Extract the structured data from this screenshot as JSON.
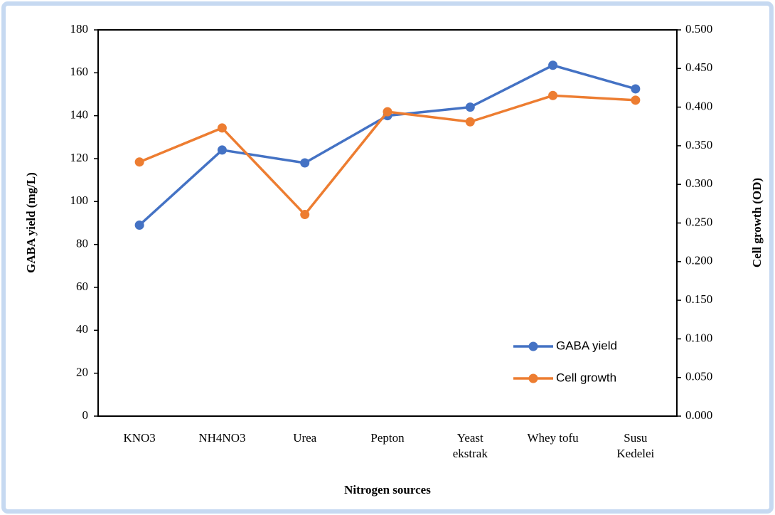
{
  "chart_data": {
    "type": "line",
    "x_label": "Nitrogen sources",
    "y_label": "GABA yield  (mg/L)",
    "y2_label": "Cell growth (OD)",
    "categories": [
      "KNO3",
      "NH4NO3",
      "Urea",
      "Pepton",
      "Yeast ekstrak",
      "Whey tofu",
      "Susu Kedelei"
    ],
    "series": [
      {
        "name": "GABA yield",
        "color": "#4472c4",
        "values": [
          89,
          124,
          118,
          140,
          144,
          163.5,
          152.5
        ]
      },
      {
        "name": "Cell growth",
        "color": "#ed7d31",
        "axis": "y2",
        "values": [
          0.329,
          0.373,
          0.261,
          0.394,
          0.381,
          0.415,
          0.409
        ]
      }
    ],
    "ylim": [
      0,
      180
    ],
    "yticks": [
      0,
      20,
      40,
      60,
      80,
      100,
      120,
      140,
      160,
      180
    ],
    "y2lim": [
      0,
      0.5
    ],
    "y2ticks": [
      {
        "value": 0,
        "label": "0.000"
      },
      {
        "value": 0.05,
        "label": "0.050"
      },
      {
        "value": 0.1,
        "label": "0.100"
      },
      {
        "value": 0.15,
        "label": "0.150"
      },
      {
        "value": 0.2,
        "label": "0.200"
      },
      {
        "value": 0.25,
        "label": "0.250"
      },
      {
        "value": 0.3,
        "label": "0.300"
      },
      {
        "value": 0.35,
        "label": "0.350"
      },
      {
        "value": 0.4,
        "label": "0.400"
      },
      {
        "value": 0.45,
        "label": "0.450"
      },
      {
        "value": 0.5,
        "label": "0.500"
      }
    ],
    "grid": false,
    "legend": "lower right"
  }
}
